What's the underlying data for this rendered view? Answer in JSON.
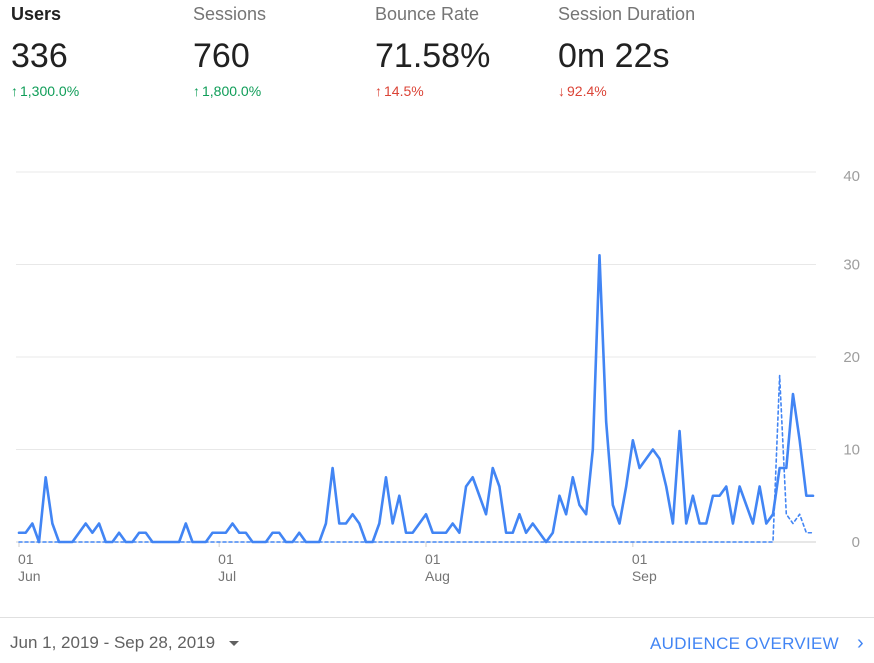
{
  "metrics": [
    {
      "label": "Users",
      "value": "336",
      "arrow": "↑",
      "change": "1,300.0%",
      "tone": "up-good",
      "active": true
    },
    {
      "label": "Sessions",
      "value": "760",
      "arrow": "↑",
      "change": "1,800.0%",
      "tone": "up-good",
      "active": false
    },
    {
      "label": "Bounce Rate",
      "value": "71.58%",
      "arrow": "↑",
      "change": "14.5%",
      "tone": "up-bad",
      "active": false
    },
    {
      "label": "Session Duration",
      "value": "0m 22s",
      "arrow": "↓",
      "change": "92.4%",
      "tone": "down-bad",
      "active": false
    }
  ],
  "footer": {
    "date_range": "Jun 1, 2019 - Sep 28, 2019",
    "link_label": "AUDIENCE OVERVIEW",
    "chevron_icon": "chevron-right-icon"
  },
  "colors": {
    "series": "#4285f4",
    "positive": "#0f9d58",
    "negative": "#db4437"
  },
  "chart_data": {
    "type": "line",
    "ylim": [
      0,
      40
    ],
    "yticks": [
      0,
      10,
      20,
      30,
      40
    ],
    "grid": true,
    "x_start": "2019-06-01",
    "x_ticks": [
      {
        "date": "2019-06-01",
        "label": "01",
        "sublabel": "Jun"
      },
      {
        "date": "2019-07-01",
        "label": "01",
        "sublabel": "Jul"
      },
      {
        "date": "2019-08-01",
        "label": "01",
        "sublabel": "Aug"
      },
      {
        "date": "2019-09-01",
        "label": "01",
        "sublabel": "Sep"
      }
    ],
    "series": [
      {
        "style": "solid",
        "values": [
          1,
          1,
          2,
          0,
          7,
          2,
          0,
          0,
          0,
          1,
          2,
          1,
          2,
          0,
          0,
          1,
          0,
          0,
          1,
          1,
          0,
          0,
          0,
          0,
          0,
          2,
          0,
          0,
          0,
          1,
          1,
          1,
          2,
          1,
          1,
          0,
          0,
          0,
          1,
          1,
          0,
          0,
          1,
          0,
          0,
          0,
          2,
          8,
          2,
          2,
          3,
          2,
          0,
          0,
          2,
          7,
          2,
          5,
          1,
          1,
          2,
          3,
          1,
          1,
          1,
          2,
          1,
          6,
          7,
          5,
          3,
          8,
          6,
          1,
          1,
          3,
          1,
          2,
          1,
          0,
          1,
          5,
          3,
          7,
          4,
          3,
          10,
          31,
          13,
          4,
          2,
          6,
          11,
          8,
          9,
          10,
          9,
          6,
          2,
          12,
          2,
          5,
          2,
          2,
          5,
          5,
          6,
          2,
          6,
          4,
          2,
          6,
          2,
          3,
          8,
          8,
          16,
          11,
          5,
          5
        ]
      },
      {
        "style": "dashed",
        "values": [
          0,
          0,
          0,
          0,
          0,
          0,
          0,
          0,
          0,
          0,
          0,
          0,
          0,
          0,
          0,
          0,
          0,
          0,
          0,
          0,
          0,
          0,
          0,
          0,
          0,
          0,
          0,
          0,
          0,
          0,
          0,
          0,
          0,
          0,
          0,
          0,
          0,
          0,
          0,
          0,
          0,
          0,
          0,
          0,
          0,
          0,
          0,
          0,
          0,
          0,
          0,
          0,
          0,
          0,
          0,
          0,
          0,
          0,
          0,
          0,
          0,
          0,
          0,
          0,
          0,
          0,
          0,
          0,
          0,
          0,
          0,
          0,
          0,
          0,
          0,
          0,
          0,
          0,
          0,
          0,
          0,
          0,
          0,
          0,
          0,
          0,
          0,
          0,
          0,
          0,
          0,
          0,
          0,
          0,
          0,
          0,
          0,
          0,
          0,
          0,
          0,
          0,
          0,
          0,
          0,
          0,
          0,
          0,
          0,
          0,
          0,
          0,
          0,
          0,
          18,
          3,
          2,
          3,
          1,
          1
        ]
      }
    ]
  }
}
